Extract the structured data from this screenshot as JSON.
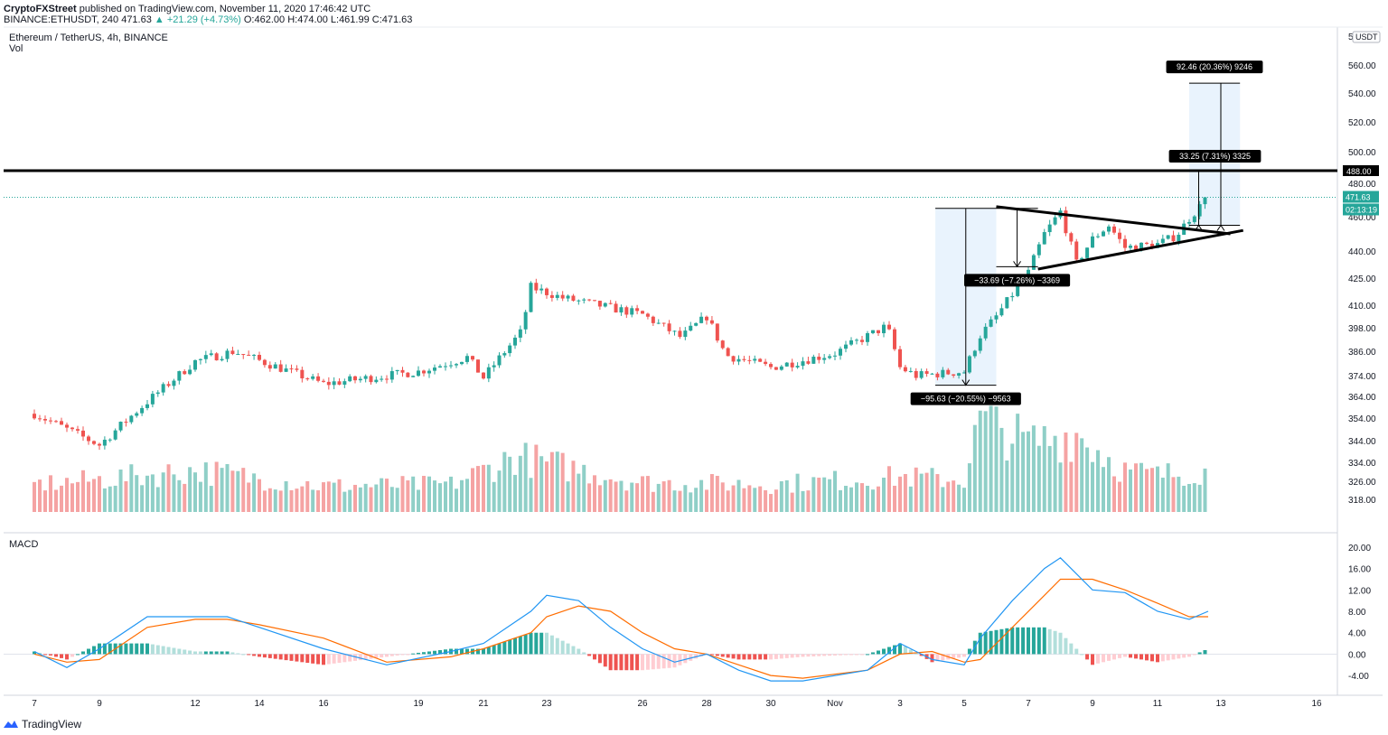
{
  "header": {
    "author": "CryptoFXStreet",
    "published_text": "published on TradingView.com, November 11, 2020 17:46:42 UTC",
    "ohlc_text": "BINANCE:ETHUSDT, 240  471.63",
    "change_text": "▲ +21.29 (+4.73%)",
    "ohlc_values": "O:462.00  H:474.00  L:461.99  C:471.63"
  },
  "legend": {
    "symbol": "Ethereum / TetherUS, 4h, BINANCE",
    "volume": "Vol",
    "macd": "MACD"
  },
  "footer": {
    "brand": "TradingView"
  },
  "colors": {
    "up": "#26a69a",
    "down": "#ef5350",
    "vol_up": "#8fcfc7",
    "vol_down": "#f5a3a3",
    "macd_line": "#2196f3",
    "signal_line": "#ff6d00",
    "hist_up_strong": "#26a69a",
    "hist_up_weak": "#b2dfdb",
    "hist_down_strong": "#ef5350",
    "hist_down_weak": "#ffcdd2",
    "box": "#e3f0fc",
    "grid": "#e9ecf1"
  },
  "chart_data": {
    "type": "candlestick",
    "symbol": "ETHUSDT",
    "timeframe": "4h",
    "price_axis": {
      "currency": "USDT",
      "ticks": [
        318,
        326,
        334,
        344,
        354,
        364,
        374,
        386,
        398,
        410,
        425,
        440,
        460,
        480,
        500,
        520,
        540,
        560
      ],
      "top_label": "5",
      "range": [
        312,
        580
      ]
    },
    "x_axis": {
      "ticks": [
        "7",
        "9",
        "12",
        "14",
        "16",
        "19",
        "21",
        "23",
        "26",
        "28",
        "30",
        "Nov",
        "3",
        "5",
        "7",
        "9",
        "11",
        "13",
        "16"
      ]
    },
    "last_price": {
      "value": 471.63,
      "label": "471.63",
      "countdown": "02:13:19"
    },
    "resistance": {
      "value": 488.0,
      "label": "488.00"
    },
    "anchors": [
      {
        "x": 7,
        "y": 356
      },
      {
        "x": 9,
        "y": 342
      },
      {
        "x": 12,
        "y": 381
      },
      {
        "x": 13.2,
        "y": 386
      },
      {
        "x": 16,
        "y": 370
      },
      {
        "x": 19,
        "y": 376
      },
      {
        "x": 20.5,
        "y": 383
      },
      {
        "x": 21,
        "y": 373
      },
      {
        "x": 22.2,
        "y": 396
      },
      {
        "x": 22.5,
        "y": 420
      },
      {
        "x": 23.5,
        "y": 414
      },
      {
        "x": 26,
        "y": 405
      },
      {
        "x": 27.2,
        "y": 393
      },
      {
        "x": 28,
        "y": 404
      },
      {
        "x": 28.6,
        "y": 384
      },
      {
        "x": 30,
        "y": 378
      },
      {
        "x": 32,
        "y": 385
      },
      {
        "x": 33.6,
        "y": 399
      },
      {
        "x": 34,
        "y": 378
      },
      {
        "x": 34.5,
        "y": 374
      },
      {
        "x": 36,
        "y": 376
      },
      {
        "x": 36.5,
        "y": 394
      },
      {
        "x": 37,
        "y": 404
      },
      {
        "x": 38,
        "y": 428
      },
      {
        "x": 38.5,
        "y": 450
      },
      {
        "x": 39,
        "y": 463
      },
      {
        "x": 39.5,
        "y": 433
      },
      {
        "x": 40,
        "y": 447
      },
      {
        "x": 40.5,
        "y": 455
      },
      {
        "x": 41,
        "y": 442
      },
      {
        "x": 42,
        "y": 444
      },
      {
        "x": 42.6,
        "y": 449
      },
      {
        "x": 43,
        "y": 459
      },
      {
        "x": 43.6,
        "y": 471.6
      }
    ],
    "volume_anchors": [
      {
        "x": 7,
        "v": 0.3
      },
      {
        "x": 9,
        "v": 0.35
      },
      {
        "x": 12,
        "v": 0.45
      },
      {
        "x": 16,
        "v": 0.28
      },
      {
        "x": 20,
        "v": 0.3
      },
      {
        "x": 22,
        "v": 0.6
      },
      {
        "x": 26,
        "v": 0.32
      },
      {
        "x": 30,
        "v": 0.3
      },
      {
        "x": 34,
        "v": 0.38
      },
      {
        "x": 36,
        "v": 0.35
      },
      {
        "x": 36.5,
        "v": 1.0
      },
      {
        "x": 38,
        "v": 0.75
      },
      {
        "x": 39.5,
        "v": 0.85
      },
      {
        "x": 41,
        "v": 0.45
      },
      {
        "x": 42,
        "v": 0.4
      },
      {
        "x": 43.6,
        "v": 0.45
      }
    ],
    "macd": {
      "ticks": [
        -4.0,
        0.0,
        4.0,
        8.0,
        12.0,
        16.0,
        20.0
      ],
      "tick_labels": [
        "-4.00",
        "0.00",
        "4.00",
        "8.00",
        "12.00",
        "16.00",
        "20.00"
      ],
      "range": [
        -6,
        21
      ],
      "macd_anchors": [
        {
          "x": 7,
          "y": 0.5
        },
        {
          "x": 8,
          "y": -2.5
        },
        {
          "x": 9,
          "y": 1
        },
        {
          "x": 10.5,
          "y": 7
        },
        {
          "x": 12,
          "y": 7
        },
        {
          "x": 13,
          "y": 7
        },
        {
          "x": 14,
          "y": 5
        },
        {
          "x": 16,
          "y": 1
        },
        {
          "x": 18,
          "y": -2
        },
        {
          "x": 20,
          "y": 0.5
        },
        {
          "x": 21,
          "y": 2
        },
        {
          "x": 22.5,
          "y": 8
        },
        {
          "x": 23,
          "y": 11
        },
        {
          "x": 24,
          "y": 10
        },
        {
          "x": 25,
          "y": 5
        },
        {
          "x": 26,
          "y": 1
        },
        {
          "x": 27,
          "y": -1.5
        },
        {
          "x": 28,
          "y": 0
        },
        {
          "x": 29,
          "y": -3
        },
        {
          "x": 30,
          "y": -5
        },
        {
          "x": 31,
          "y": -5
        },
        {
          "x": 33,
          "y": -3
        },
        {
          "x": 34,
          "y": 2
        },
        {
          "x": 35,
          "y": -1
        },
        {
          "x": 36,
          "y": -2
        },
        {
          "x": 36.5,
          "y": 3
        },
        {
          "x": 37.5,
          "y": 10
        },
        {
          "x": 38.5,
          "y": 16
        },
        {
          "x": 39,
          "y": 18
        },
        {
          "x": 40,
          "y": 12
        },
        {
          "x": 41,
          "y": 11.5
        },
        {
          "x": 42,
          "y": 8
        },
        {
          "x": 43,
          "y": 6.5
        },
        {
          "x": 43.6,
          "y": 8
        }
      ],
      "signal_anchors": [
        {
          "x": 7,
          "y": 0
        },
        {
          "x": 8,
          "y": -1.5
        },
        {
          "x": 9,
          "y": -1
        },
        {
          "x": 10.5,
          "y": 5
        },
        {
          "x": 12,
          "y": 6.5
        },
        {
          "x": 13,
          "y": 6.5
        },
        {
          "x": 14,
          "y": 5.5
        },
        {
          "x": 16,
          "y": 3
        },
        {
          "x": 18,
          "y": -1.5
        },
        {
          "x": 20,
          "y": -0.5
        },
        {
          "x": 21,
          "y": 1
        },
        {
          "x": 22.5,
          "y": 4
        },
        {
          "x": 23,
          "y": 7
        },
        {
          "x": 24,
          "y": 9
        },
        {
          "x": 25,
          "y": 8
        },
        {
          "x": 26,
          "y": 4
        },
        {
          "x": 27,
          "y": 1
        },
        {
          "x": 28,
          "y": 0
        },
        {
          "x": 29,
          "y": -2
        },
        {
          "x": 30,
          "y": -4
        },
        {
          "x": 31,
          "y": -4.5
        },
        {
          "x": 33,
          "y": -3
        },
        {
          "x": 34,
          "y": 0
        },
        {
          "x": 35,
          "y": 0.5
        },
        {
          "x": 36,
          "y": -1.5
        },
        {
          "x": 36.5,
          "y": -1
        },
        {
          "x": 37.5,
          "y": 5
        },
        {
          "x": 38.5,
          "y": 11
        },
        {
          "x": 39,
          "y": 14
        },
        {
          "x": 40,
          "y": 14
        },
        {
          "x": 41,
          "y": 12
        },
        {
          "x": 42,
          "y": 9.5
        },
        {
          "x": 43,
          "y": 7
        },
        {
          "x": 43.6,
          "y": 7
        }
      ]
    },
    "annotations": {
      "measure_down": {
        "x_start": 35.1,
        "x_end": 37,
        "y_top": 465,
        "y_bottom": 369.4,
        "label": "−95.63 (−20.55%) −9563"
      },
      "measure_mid": {
        "x_start": 37,
        "x_end": 38.3,
        "y_top": 465,
        "y_bottom": 431.3,
        "label": "−33.69 (−7.26%) −3369"
      },
      "measure_up": {
        "x_start": 43,
        "x_end": 44.6,
        "y_top": 547,
        "y_bottom": 455,
        "label": "92.46 (20.36%) 9246"
      },
      "measure_small": {
        "x_start": 43,
        "x_end": 43.6,
        "y_top": 488,
        "y_bottom": 455,
        "label": "33.25 (7.31%) 3325"
      },
      "triangle_upper": {
        "x1": 37,
        "y1": 466,
        "x2": 44.3,
        "y2": 450
      },
      "triangle_lower": {
        "x1": 38.3,
        "y1": 430,
        "x2": 44.7,
        "y2": 452
      }
    }
  }
}
